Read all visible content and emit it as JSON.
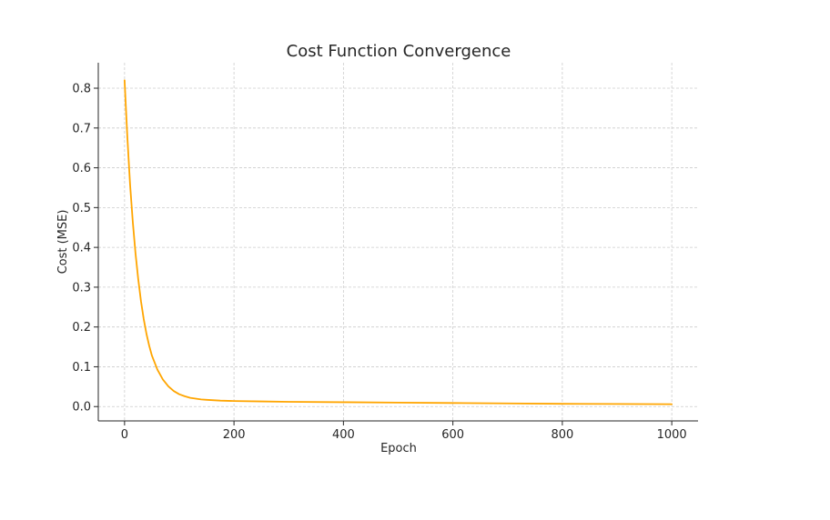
{
  "chart_data": {
    "type": "line",
    "title": "Cost Function Convergence",
    "xlabel": "Epoch",
    "ylabel": "Cost (MSE)",
    "xlim": [
      -48,
      1048
    ],
    "ylim": [
      -0.036,
      0.864
    ],
    "xticks": [
      0,
      200,
      400,
      600,
      800,
      1000
    ],
    "yticks": [
      0.0,
      0.1,
      0.2,
      0.3,
      0.4,
      0.5,
      0.6,
      0.7,
      0.8
    ],
    "xtick_labels": [
      "0",
      "200",
      "400",
      "600",
      "800",
      "1000"
    ],
    "ytick_labels": [
      "0.0",
      "0.1",
      "0.2",
      "0.3",
      "0.4",
      "0.5",
      "0.6",
      "0.7",
      "0.8"
    ],
    "grid": true,
    "legend": "none",
    "series": [
      {
        "color": "#FFA500",
        "x": [
          0,
          5,
          10,
          15,
          20,
          25,
          30,
          35,
          40,
          45,
          50,
          60,
          70,
          80,
          90,
          100,
          110,
          120,
          130,
          140,
          150,
          175,
          200,
          250,
          300,
          400,
          500,
          600,
          700,
          800,
          900,
          1000
        ],
        "y": [
          0.82,
          0.68,
          0.56,
          0.465,
          0.385,
          0.32,
          0.265,
          0.22,
          0.183,
          0.153,
          0.128,
          0.093,
          0.068,
          0.051,
          0.039,
          0.031,
          0.026,
          0.022,
          0.02,
          0.018,
          0.017,
          0.015,
          0.014,
          0.013,
          0.012,
          0.011,
          0.01,
          0.009,
          0.008,
          0.007,
          0.0065,
          0.006
        ]
      }
    ]
  },
  "colors": {
    "line": "#FFA500",
    "grid": "#cccccc",
    "axis": "#262626",
    "text": "#262626"
  }
}
